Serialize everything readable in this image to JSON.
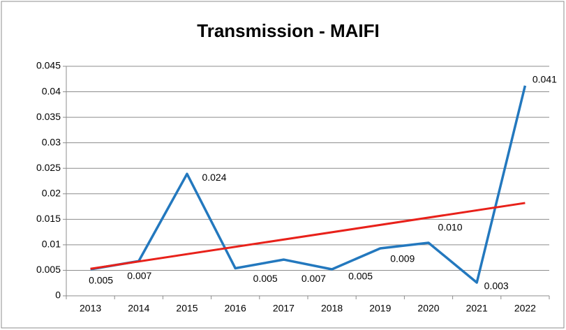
{
  "chart_data": {
    "type": "line",
    "title": "Transmission - MAIFI",
    "categories": [
      "2013",
      "2014",
      "2015",
      "2016",
      "2017",
      "2018",
      "2019",
      "2020",
      "2021",
      "2022"
    ],
    "series": [
      {
        "color": "#2378be",
        "values": [
          0.0052,
          0.0068,
          0.0239,
          0.0054,
          0.0071,
          0.0052,
          0.0093,
          0.0104,
          0.0026,
          0.0412
        ],
        "value_labels": [
          "0.005",
          "0.007",
          "0.024",
          "0.005",
          "0.007",
          "0.005",
          "0.009",
          "0.010",
          "0.003",
          "0.041"
        ]
      }
    ],
    "trendline": {
      "color": "#e8211a",
      "values": [
        0.0053,
        0.0182
      ]
    },
    "ylim": [
      0,
      0.045
    ],
    "yticks": [
      0,
      0.005,
      0.01,
      0.015,
      0.02,
      0.025,
      0.03,
      0.035,
      0.04,
      0.045
    ],
    "grid": true
  }
}
